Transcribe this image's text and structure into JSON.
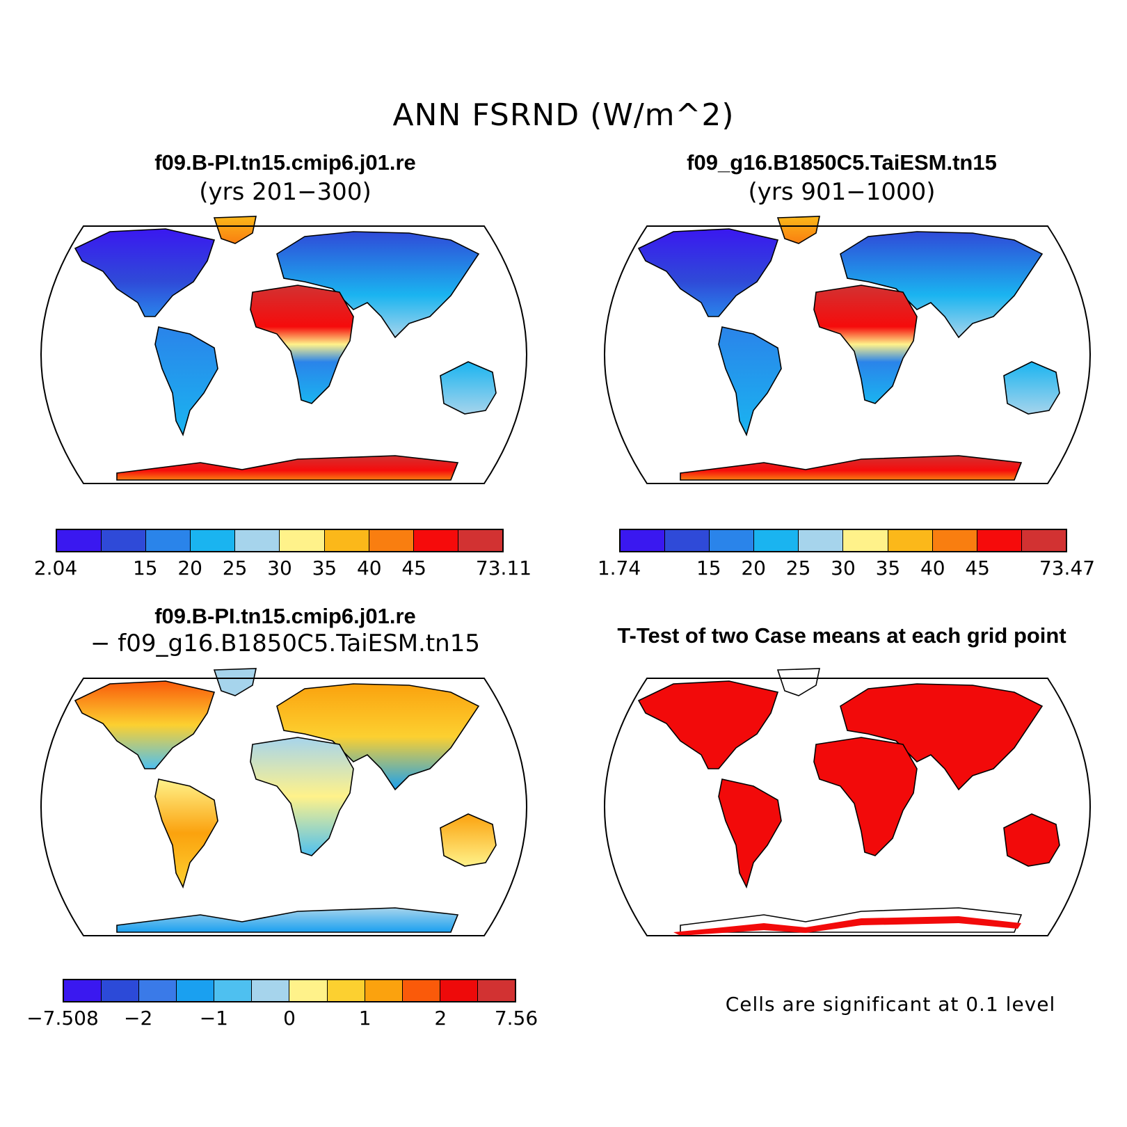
{
  "title": "ANN FSRND (W/m^2)",
  "panels": [
    {
      "id": "case1",
      "title": "f09.B-PI.tn15.cmip6.j01.re",
      "subtitle": "(yrs 201−300)"
    },
    {
      "id": "case2",
      "title": "f09_g16.B1850C5.TaiESM.tn15",
      "subtitle": "(yrs 901−1000)"
    },
    {
      "id": "diff",
      "title": "f09.B-PI.tn15.cmip6.j01.re",
      "subtitle": "− f09_g16.B1850C5.TaiESM.tn15"
    },
    {
      "id": "ttest",
      "title": "T-Test of two Case means at each grid point",
      "subtitle": ""
    }
  ],
  "colorbars": {
    "case1": {
      "colors": [
        "#3a18f0",
        "#2f4ad8",
        "#2a84ea",
        "#1ab4f0",
        "#a6d4ec",
        "#fff28a",
        "#fbb81a",
        "#f97e10",
        "#f60b0b",
        "#d23232"
      ],
      "labels": [
        "2.04",
        "15",
        "20",
        "25",
        "30",
        "35",
        "40",
        "45",
        "73.11"
      ]
    },
    "case2": {
      "colors": [
        "#3a18f0",
        "#2f4ad8",
        "#2a84ea",
        "#1ab4f0",
        "#a6d4ec",
        "#fff28a",
        "#fbb81a",
        "#f97e10",
        "#f60b0b",
        "#d23232"
      ],
      "labels": [
        "1.74",
        "15",
        "20",
        "25",
        "30",
        "35",
        "40",
        "45",
        "73.47"
      ]
    },
    "diff": {
      "colors": [
        "#3a18f0",
        "#2c4ad8",
        "#3a7ae8",
        "#1aa0f0",
        "#4ec0f0",
        "#a6d4ec",
        "#fff28a",
        "#fcd030",
        "#fba20e",
        "#fa5a0a",
        "#ee0a0a",
        "#d23232"
      ],
      "labels": [
        "−7.508",
        "−2",
        "−1",
        "0",
        "1",
        "2",
        "7.56"
      ]
    }
  },
  "ttest_note": "Cells are significant at 0.1 level",
  "colors": {
    "significant": "#f20a0a",
    "ocean": "#ffffff"
  }
}
